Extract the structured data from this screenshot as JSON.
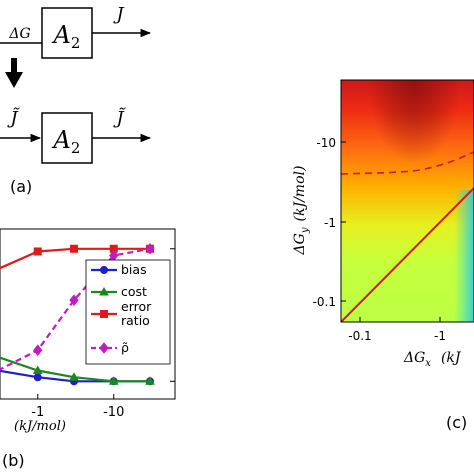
{
  "panel_a": {
    "label": "(a)",
    "block_label": "A",
    "block_subscript": "2",
    "input_label": "ΔG",
    "output_top": "J",
    "input_bottom": "J̃",
    "output_bottom": "J̃"
  },
  "chart_data": [
    {
      "panel": "(b)",
      "type": "line",
      "xlabel": "(kJ/mol)",
      "x_tick_labels": [
        "-1",
        "-10"
      ],
      "x": [
        -0.3,
        -1,
        -3,
        -10,
        -30
      ],
      "series": [
        {
          "name": "bias",
          "color": "#1f1fd0",
          "marker": "circle",
          "dashed": false,
          "values": [
            0.1,
            0.05,
            0.02,
            0.02,
            0.02
          ]
        },
        {
          "name": "cost",
          "color": "#1a8a1a",
          "marker": "triangle",
          "dashed": false,
          "values": [
            0.2,
            0.1,
            0.05,
            0.02,
            0.02
          ]
        },
        {
          "name": "error ratio",
          "color": "#e01b1b",
          "marker": "square",
          "dashed": false,
          "values": [
            0.85,
            0.98,
            1.0,
            1.0,
            1.0
          ]
        },
        {
          "name": "ρ̃",
          "color": "#c21bc2",
          "marker": "diamond",
          "dashed": true,
          "values": [
            0.1,
            0.25,
            0.62,
            0.95,
            1.0
          ]
        }
      ],
      "ylim": [
        0,
        1.05
      ],
      "legend": "right"
    },
    {
      "panel": "(c)",
      "type": "heatmap",
      "xlabel_main": "ΔG",
      "xlabel_sub": "x",
      "xlabel_unit": "(kJ",
      "ylabel_main": "ΔG",
      "ylabel_sub": "y",
      "ylabel_unit": "(kJ/mol)",
      "x_tick_labels": [
        "-0.1",
        "-1"
      ],
      "y_tick_labels": [
        "-10",
        "-1",
        "-0.1"
      ],
      "x_range": [
        -0.07,
        -3
      ],
      "y_range": [
        -0.07,
        -40
      ],
      "scale": "log",
      "colormap": [
        "#c8ff3a",
        "#ffe000",
        "#ff7a00",
        "#ee1010",
        "#a01010"
      ],
      "solid_line": "ΔG_y = ΔG_x",
      "dashed_line_y": -4.5
    }
  ],
  "panel_c_label": "(c)"
}
